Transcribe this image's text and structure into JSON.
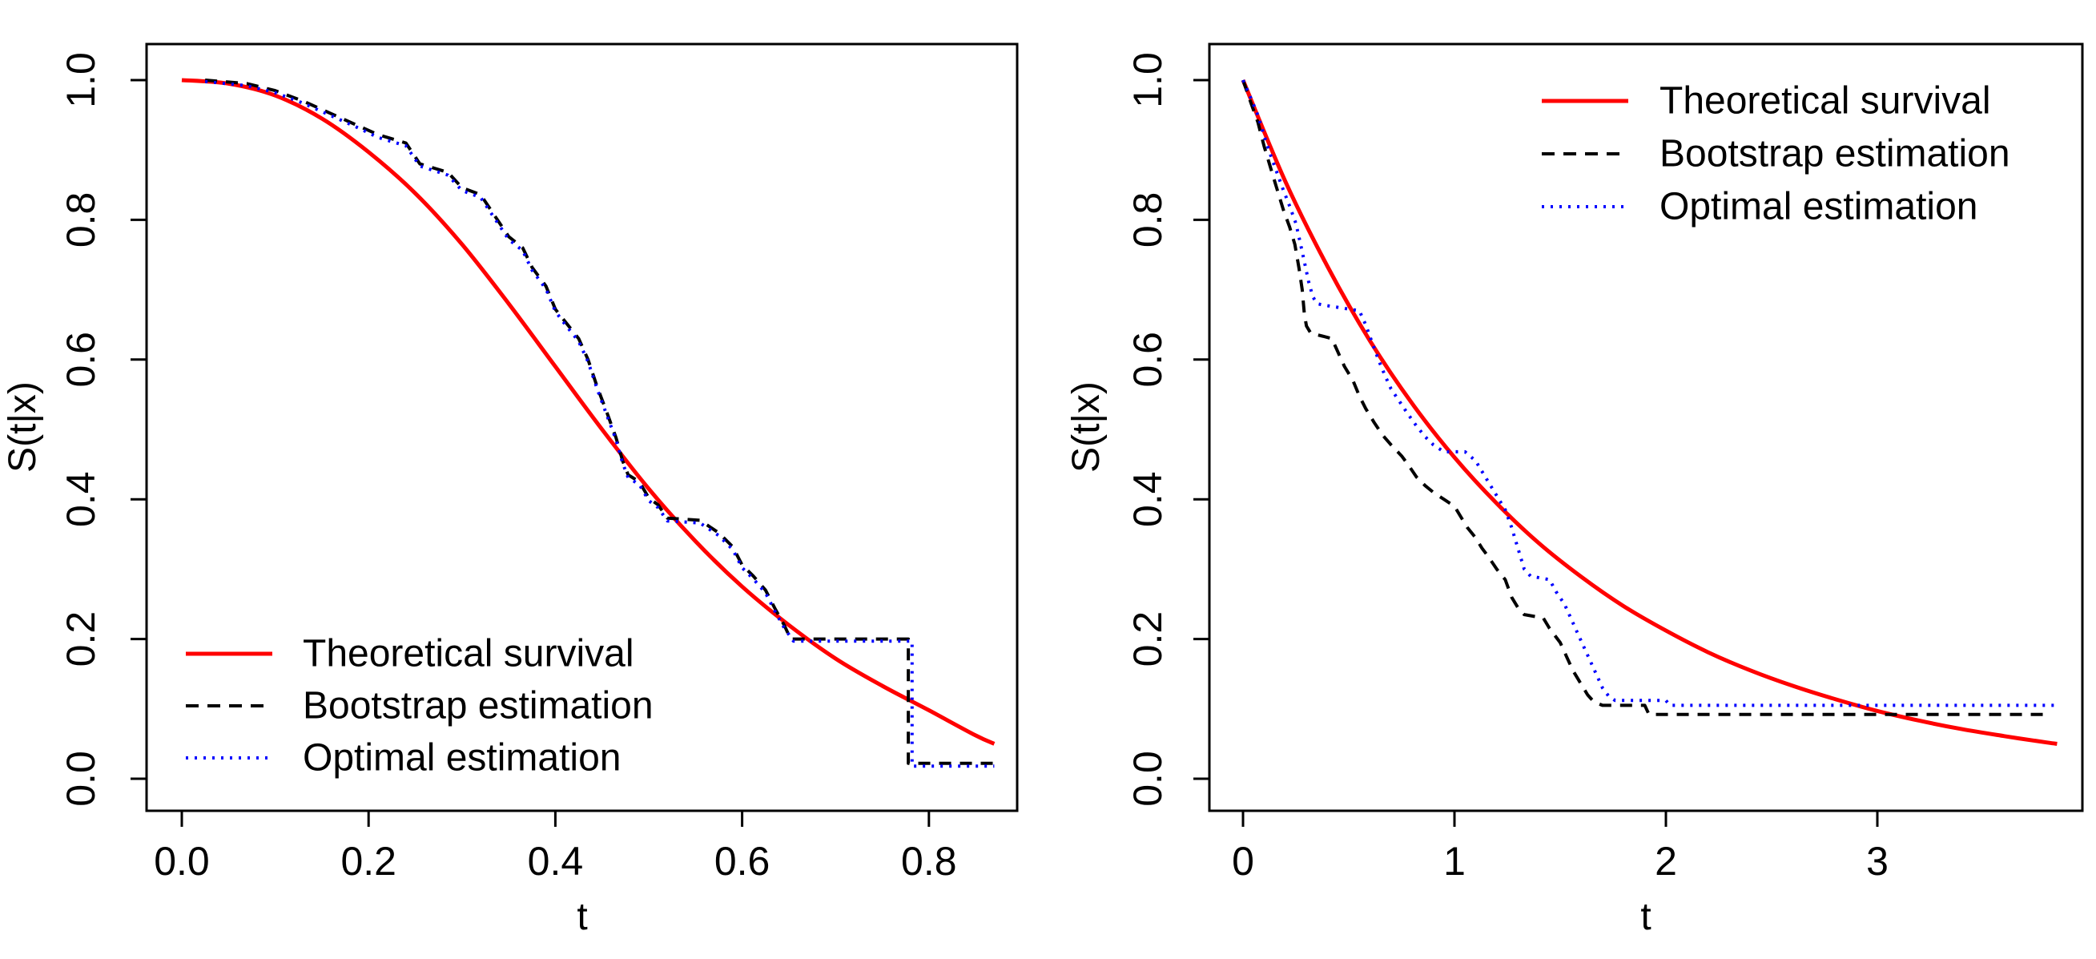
{
  "figure": {
    "background": "#ffffff",
    "accent_colors": {
      "theoretical": "#ff0000",
      "bootstrap": "#000000",
      "optimal": "#0000ff"
    }
  },
  "chart_data": [
    {
      "type": "line",
      "title": "",
      "xlabel": "t",
      "ylabel": "S(t|x)",
      "xlim": [
        -0.036,
        0.895
      ],
      "ylim": [
        -0.04,
        1.045
      ],
      "x_ticks": [
        0.0,
        0.2,
        0.4,
        0.6,
        0.8
      ],
      "x_tick_labels": [
        "0.0",
        "0.2",
        "0.4",
        "0.6",
        "0.8"
      ],
      "y_ticks": [
        0.0,
        0.2,
        0.4,
        0.6,
        0.8,
        1.0
      ],
      "y_tick_labels": [
        "0.0",
        "0.2",
        "0.4",
        "0.6",
        "0.8",
        "1.0"
      ],
      "grid": false,
      "legend_position": "bottom-left",
      "series": [
        {
          "name": "Theoretical survival",
          "color": "#ff0000",
          "style": "solid",
          "smooth": true,
          "points": [
            [
              0.0,
              1.0
            ],
            [
              0.05,
              0.995
            ],
            [
              0.1,
              0.978
            ],
            [
              0.15,
              0.945
            ],
            [
              0.2,
              0.897
            ],
            [
              0.25,
              0.838
            ],
            [
              0.3,
              0.765
            ],
            [
              0.35,
              0.68
            ],
            [
              0.4,
              0.59
            ],
            [
              0.45,
              0.5
            ],
            [
              0.5,
              0.415
            ],
            [
              0.55,
              0.34
            ],
            [
              0.6,
              0.275
            ],
            [
              0.65,
              0.22
            ],
            [
              0.7,
              0.172
            ],
            [
              0.75,
              0.133
            ],
            [
              0.8,
              0.098
            ],
            [
              0.85,
              0.062
            ],
            [
              0.87,
              0.05
            ]
          ]
        },
        {
          "name": "Bootstrap estimation",
          "color": "#000000",
          "style": "dashed",
          "smooth": false,
          "points": [
            [
              0.025,
              1.0
            ],
            [
              0.07,
              0.995
            ],
            [
              0.1,
              0.985
            ],
            [
              0.13,
              0.97
            ],
            [
              0.16,
              0.952
            ],
            [
              0.19,
              0.934
            ],
            [
              0.21,
              0.922
            ],
            [
              0.24,
              0.91
            ],
            [
              0.255,
              0.88
            ],
            [
              0.285,
              0.868
            ],
            [
              0.3,
              0.846
            ],
            [
              0.32,
              0.836
            ],
            [
              0.335,
              0.806
            ],
            [
              0.35,
              0.776
            ],
            [
              0.365,
              0.76
            ],
            [
              0.375,
              0.732
            ],
            [
              0.39,
              0.705
            ],
            [
              0.4,
              0.672
            ],
            [
              0.41,
              0.655
            ],
            [
              0.425,
              0.63
            ],
            [
              0.435,
              0.6
            ],
            [
              0.445,
              0.56
            ],
            [
              0.455,
              0.525
            ],
            [
              0.465,
              0.488
            ],
            [
              0.472,
              0.455
            ],
            [
              0.478,
              0.435
            ],
            [
              0.49,
              0.425
            ],
            [
              0.5,
              0.402
            ],
            [
              0.51,
              0.392
            ],
            [
              0.52,
              0.373
            ],
            [
              0.555,
              0.37
            ],
            [
              0.575,
              0.352
            ],
            [
              0.59,
              0.332
            ],
            [
              0.6,
              0.306
            ],
            [
              0.612,
              0.29
            ],
            [
              0.625,
              0.27
            ],
            [
              0.635,
              0.244
            ],
            [
              0.645,
              0.22
            ],
            [
              0.652,
              0.2
            ],
            [
              0.778,
              0.2
            ],
            [
              0.778,
              0.022
            ],
            [
              0.87,
              0.022
            ]
          ]
        },
        {
          "name": "Optimal estimation",
          "color": "#0000ff",
          "style": "dotted",
          "smooth": false,
          "points": [
            [
              0.025,
              0.998
            ],
            [
              0.07,
              0.992
            ],
            [
              0.1,
              0.982
            ],
            [
              0.13,
              0.967
            ],
            [
              0.16,
              0.949
            ],
            [
              0.19,
              0.931
            ],
            [
              0.21,
              0.918
            ],
            [
              0.24,
              0.906
            ],
            [
              0.255,
              0.877
            ],
            [
              0.285,
              0.864
            ],
            [
              0.3,
              0.842
            ],
            [
              0.32,
              0.832
            ],
            [
              0.335,
              0.802
            ],
            [
              0.35,
              0.772
            ],
            [
              0.365,
              0.756
            ],
            [
              0.375,
              0.728
            ],
            [
              0.39,
              0.701
            ],
            [
              0.4,
              0.669
            ],
            [
              0.41,
              0.651
            ],
            [
              0.425,
              0.626
            ],
            [
              0.435,
              0.597
            ],
            [
              0.445,
              0.557
            ],
            [
              0.455,
              0.521
            ],
            [
              0.465,
              0.485
            ],
            [
              0.472,
              0.452
            ],
            [
              0.478,
              0.431
            ],
            [
              0.49,
              0.421
            ],
            [
              0.5,
              0.398
            ],
            [
              0.51,
              0.388
            ],
            [
              0.52,
              0.369
            ],
            [
              0.555,
              0.366
            ],
            [
              0.575,
              0.348
            ],
            [
              0.59,
              0.328
            ],
            [
              0.6,
              0.302
            ],
            [
              0.612,
              0.286
            ],
            [
              0.625,
              0.266
            ],
            [
              0.635,
              0.24
            ],
            [
              0.645,
              0.216
            ],
            [
              0.655,
              0.197
            ],
            [
              0.782,
              0.197
            ],
            [
              0.782,
              0.018
            ],
            [
              0.87,
              0.018
            ]
          ]
        }
      ]
    },
    {
      "type": "line",
      "title": "",
      "xlabel": "t",
      "ylabel": "S(t|x)",
      "xlim": [
        -0.16,
        3.97
      ],
      "ylim": [
        -0.04,
        1.045
      ],
      "x_ticks": [
        0,
        1,
        2,
        3
      ],
      "x_tick_labels": [
        "0",
        "1",
        "2",
        "3"
      ],
      "y_ticks": [
        0.0,
        0.2,
        0.4,
        0.6,
        0.8,
        1.0
      ],
      "y_tick_labels": [
        "0.0",
        "0.2",
        "0.4",
        "0.6",
        "0.8",
        "1.0"
      ],
      "grid": false,
      "legend_position": "top-right",
      "series": [
        {
          "name": "Theoretical survival",
          "color": "#ff0000",
          "style": "solid",
          "smooth": true,
          "points": [
            [
              0.0,
              1.0
            ],
            [
              0.2,
              0.855
            ],
            [
              0.4,
              0.733
            ],
            [
              0.6,
              0.627
            ],
            [
              0.8,
              0.537
            ],
            [
              1.0,
              0.46
            ],
            [
              1.2,
              0.394
            ],
            [
              1.4,
              0.337
            ],
            [
              1.6,
              0.289
            ],
            [
              1.8,
              0.247
            ],
            [
              2.0,
              0.212
            ],
            [
              2.2,
              0.181
            ],
            [
              2.4,
              0.155
            ],
            [
              2.6,
              0.133
            ],
            [
              2.8,
              0.114
            ],
            [
              3.0,
              0.097
            ],
            [
              3.2,
              0.083
            ],
            [
              3.4,
              0.071
            ],
            [
              3.6,
              0.061
            ],
            [
              3.8,
              0.052
            ],
            [
              3.85,
              0.05
            ]
          ]
        },
        {
          "name": "Bootstrap estimation",
          "color": "#000000",
          "style": "dashed",
          "smooth": false,
          "points": [
            [
              0.0,
              1.0
            ],
            [
              0.04,
              0.965
            ],
            [
              0.07,
              0.94
            ],
            [
              0.1,
              0.905
            ],
            [
              0.13,
              0.875
            ],
            [
              0.16,
              0.845
            ],
            [
              0.19,
              0.815
            ],
            [
              0.22,
              0.79
            ],
            [
              0.245,
              0.765
            ],
            [
              0.265,
              0.73
            ],
            [
              0.28,
              0.7
            ],
            [
              0.29,
              0.665
            ],
            [
              0.3,
              0.648
            ],
            [
              0.32,
              0.638
            ],
            [
              0.42,
              0.63
            ],
            [
              0.45,
              0.61
            ],
            [
              0.48,
              0.59
            ],
            [
              0.52,
              0.57
            ],
            [
              0.55,
              0.548
            ],
            [
              0.58,
              0.53
            ],
            [
              0.62,
              0.51
            ],
            [
              0.66,
              0.492
            ],
            [
              0.7,
              0.478
            ],
            [
              0.75,
              0.462
            ],
            [
              0.78,
              0.45
            ],
            [
              0.82,
              0.432
            ],
            [
              0.86,
              0.42
            ],
            [
              0.9,
              0.41
            ],
            [
              0.95,
              0.4
            ],
            [
              1.0,
              0.39
            ],
            [
              1.03,
              0.375
            ],
            [
              1.06,
              0.36
            ],
            [
              1.1,
              0.345
            ],
            [
              1.13,
              0.33
            ],
            [
              1.16,
              0.318
            ],
            [
              1.2,
              0.3
            ],
            [
              1.24,
              0.285
            ],
            [
              1.27,
              0.26
            ],
            [
              1.3,
              0.245
            ],
            [
              1.33,
              0.235
            ],
            [
              1.42,
              0.23
            ],
            [
              1.45,
              0.215
            ],
            [
              1.5,
              0.195
            ],
            [
              1.53,
              0.175
            ],
            [
              1.56,
              0.155
            ],
            [
              1.6,
              0.135
            ],
            [
              1.63,
              0.12
            ],
            [
              1.66,
              0.11
            ],
            [
              1.7,
              0.105
            ],
            [
              1.9,
              0.105
            ],
            [
              1.92,
              0.092
            ],
            [
              3.8,
              0.092
            ]
          ]
        },
        {
          "name": "Optimal estimation",
          "color": "#0000ff",
          "style": "dotted",
          "smooth": false,
          "points": [
            [
              0.0,
              1.0
            ],
            [
              0.04,
              0.972
            ],
            [
              0.07,
              0.95
            ],
            [
              0.1,
              0.92
            ],
            [
              0.13,
              0.893
            ],
            [
              0.16,
              0.868
            ],
            [
              0.19,
              0.843
            ],
            [
              0.22,
              0.82
            ],
            [
              0.25,
              0.795
            ],
            [
              0.27,
              0.768
            ],
            [
              0.29,
              0.74
            ],
            [
              0.31,
              0.712
            ],
            [
              0.33,
              0.69
            ],
            [
              0.35,
              0.68
            ],
            [
              0.38,
              0.678
            ],
            [
              0.55,
              0.67
            ],
            [
              0.58,
              0.65
            ],
            [
              0.61,
              0.625
            ],
            [
              0.64,
              0.6
            ],
            [
              0.67,
              0.578
            ],
            [
              0.7,
              0.558
            ],
            [
              0.74,
              0.54
            ],
            [
              0.78,
              0.522
            ],
            [
              0.82,
              0.505
            ],
            [
              0.86,
              0.49
            ],
            [
              0.9,
              0.478
            ],
            [
              0.95,
              0.468
            ],
            [
              1.05,
              0.468
            ],
            [
              1.1,
              0.455
            ],
            [
              1.13,
              0.44
            ],
            [
              1.16,
              0.425
            ],
            [
              1.2,
              0.405
            ],
            [
              1.24,
              0.385
            ],
            [
              1.27,
              0.36
            ],
            [
              1.3,
              0.33
            ],
            [
              1.33,
              0.3
            ],
            [
              1.36,
              0.29
            ],
            [
              1.45,
              0.285
            ],
            [
              1.48,
              0.268
            ],
            [
              1.52,
              0.25
            ],
            [
              1.55,
              0.23
            ],
            [
              1.58,
              0.21
            ],
            [
              1.61,
              0.19
            ],
            [
              1.64,
              0.17
            ],
            [
              1.67,
              0.15
            ],
            [
              1.7,
              0.13
            ],
            [
              1.73,
              0.118
            ],
            [
              1.76,
              0.112
            ],
            [
              2.0,
              0.112
            ],
            [
              2.02,
              0.105
            ],
            [
              3.85,
              0.105
            ]
          ]
        }
      ]
    }
  ]
}
